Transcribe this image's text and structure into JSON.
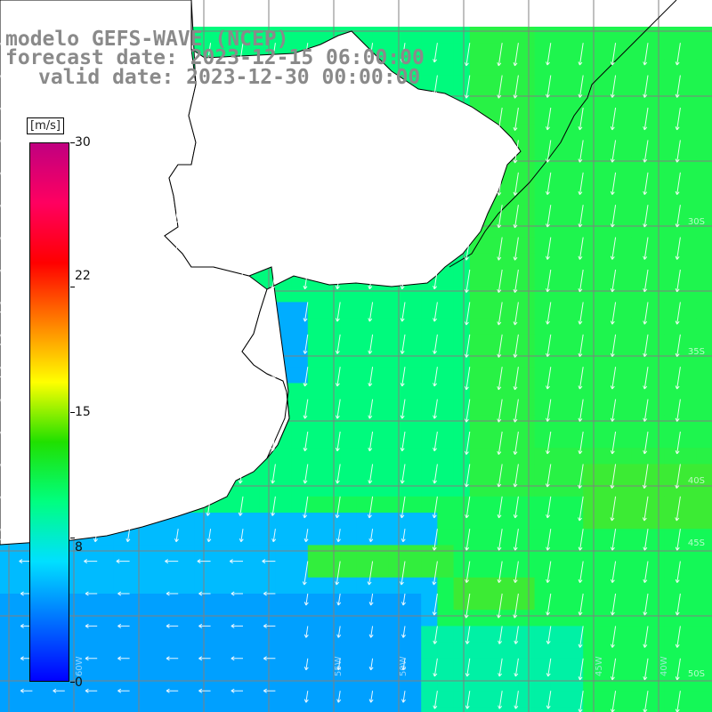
{
  "titles": {
    "line1": "modelo GEFS-WAVE (NCEP)",
    "line2": "forecast date: 2023-12-15 06:00:00",
    "line3": "valid date: 2023-12-30 00:00:00"
  },
  "colorbar": {
    "unit": "[m/s]",
    "min": 0,
    "max": 30,
    "ticks": [
      "30",
      "22",
      "15",
      "8",
      "0"
    ],
    "tick_values": [
      30,
      22,
      15,
      8,
      0
    ],
    "stops": [
      "#0000ff",
      "#0070ff",
      "#00e0ff",
      "#00ff80",
      "#20e000",
      "#ffff00",
      "#ff8000",
      "#ff0000",
      "#ff0060",
      "#c00080"
    ]
  },
  "axes": {
    "lon_labels": [
      "60W",
      "55W",
      "50W",
      "45W",
      "40W"
    ],
    "lat_labels": [
      "30S",
      "35S",
      "40S",
      "45S",
      "50S"
    ]
  },
  "colors": {
    "grid": "#808080",
    "coast": "#000000",
    "land": "#ffffff",
    "title": "#8a8a8a"
  }
}
